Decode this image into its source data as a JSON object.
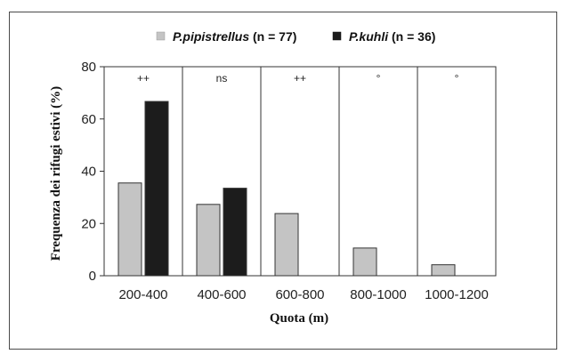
{
  "chart_data": {
    "type": "bar",
    "categories": [
      "200-400",
      "400-600",
      "600-800",
      "800-1000",
      "1000-1200"
    ],
    "series": [
      {
        "name": "P.pipistrellus",
        "legend_suffix": "(n = 77)",
        "color": "#c4c4c4",
        "values": [
          35.5,
          27.3,
          23.8,
          10.6,
          4.2
        ]
      },
      {
        "name": "P.kuhli",
        "legend_suffix": "(n = 36)",
        "color": "#1c1c1c",
        "values": [
          66.7,
          33.5,
          0,
          0,
          0
        ]
      }
    ],
    "annotations": [
      "++",
      "ns",
      "++",
      "°",
      "°"
    ],
    "xlabel": "Quota (m)",
    "ylabel": "Frequenza dei rifugi estivi (%)",
    "yticks": [
      0,
      20,
      40,
      60,
      80
    ],
    "ylim": [
      0,
      80
    ],
    "legend_position": "top",
    "grid": false
  }
}
